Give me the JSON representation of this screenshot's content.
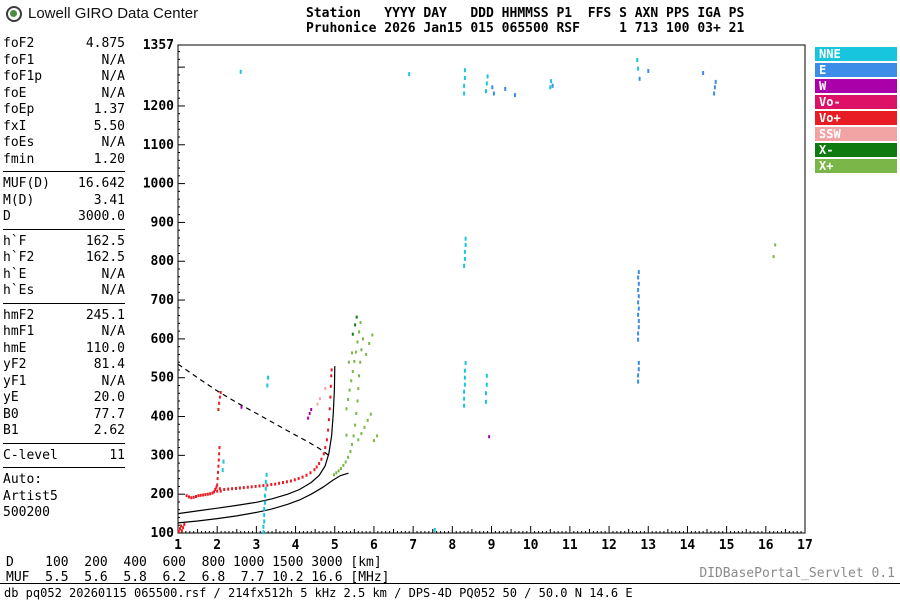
{
  "branding": {
    "title": "Lowell GIRO Data Center"
  },
  "station_header": {
    "line1": "Station   YYYY DAY   DDD HHMMSS P1  FFS S AXN PPS IGA PS",
    "line2": "Pruhonice 2026 Jan15 015 065500 RSF     1 713 100 03+ 21"
  },
  "parameters": {
    "sections": [
      {
        "divider": true,
        "rows": [
          {
            "label": "foF2",
            "value": "4.875"
          },
          {
            "label": "foF1",
            "value": "N/A"
          },
          {
            "label": "foF1p",
            "value": "N/A"
          },
          {
            "label": "foE",
            "value": "N/A"
          },
          {
            "label": "foEp",
            "value": "1.37"
          },
          {
            "label": "fxI",
            "value": "5.50"
          },
          {
            "label": "foEs",
            "value": "N/A"
          },
          {
            "label": "fmin",
            "value": "1.20"
          }
        ]
      },
      {
        "divider": true,
        "rows": [
          {
            "label": "MUF(D)",
            "value": "16.642"
          },
          {
            "label": "M(D)",
            "value": "3.41"
          },
          {
            "label": "D",
            "value": "3000.0"
          }
        ]
      },
      {
        "divider": true,
        "rows": [
          {
            "label": "h`F",
            "value": "162.5"
          },
          {
            "label": "h`F2",
            "value": "162.5"
          },
          {
            "label": "h`E",
            "value": "N/A"
          },
          {
            "label": "h`Es",
            "value": "N/A"
          }
        ]
      },
      {
        "divider": true,
        "rows": [
          {
            "label": "hmF2",
            "value": "245.1"
          },
          {
            "label": "hmF1",
            "value": "N/A"
          },
          {
            "label": "hmE",
            "value": "110.0"
          },
          {
            "label": "yF2",
            "value": "81.4"
          },
          {
            "label": "yF1",
            "value": "N/A"
          },
          {
            "label": "yE",
            "value": "20.0"
          },
          {
            "label": "B0",
            "value": "77.7"
          },
          {
            "label": "B1",
            "value": "2.62"
          }
        ]
      },
      {
        "divider": true,
        "rows": [
          {
            "label": "C-level",
            "value": "11"
          }
        ]
      },
      {
        "divider": false,
        "rows": [
          {
            "label": "Auto:",
            "value": ""
          },
          {
            "label": "Artist5",
            "value": ""
          },
          {
            "label": "500200",
            "value": ""
          }
        ]
      }
    ]
  },
  "legend": {
    "items": [
      {
        "label": "NNE",
        "color": "#17c6de"
      },
      {
        "label": "E",
        "color": "#3b8de8"
      },
      {
        "label": "W",
        "color": "#aa00aa"
      },
      {
        "label": "Vo-",
        "color": "#dd1166"
      },
      {
        "label": "Vo+",
        "color": "#e81c24"
      },
      {
        "label": "SSW",
        "color": "#f2a3a3"
      },
      {
        "label": "X-",
        "color": "#0f7a0f"
      },
      {
        "label": "X+",
        "color": "#7ab648"
      }
    ]
  },
  "chart_data": {
    "type": "scatter",
    "title": "",
    "xlabel": "",
    "ylabel": "",
    "x_unit": "MHz",
    "y_unit": "km",
    "x_range": [
      1,
      17
    ],
    "y_range": [
      100,
      1357
    ],
    "x_ticks": [
      1,
      2,
      3,
      4,
      5,
      6,
      7,
      8,
      9,
      10,
      11,
      12,
      13,
      14,
      15,
      16,
      17
    ],
    "y_ticks": [
      100,
      200,
      300,
      400,
      500,
      600,
      700,
      800,
      900,
      1000,
      1100,
      1200
    ],
    "y_top_label": 1357,
    "lines": [
      {
        "name": "true-height-profile",
        "color": "#000000",
        "dashed": false,
        "points": [
          [
            1,
            150
          ],
          [
            1.5,
            157
          ],
          [
            2,
            164
          ],
          [
            2.5,
            171
          ],
          [
            3,
            179
          ],
          [
            3.4,
            188
          ],
          [
            3.8,
            200
          ],
          [
            4.1,
            212
          ],
          [
            4.4,
            230
          ],
          [
            4.6,
            248
          ],
          [
            4.75,
            272
          ],
          [
            4.85,
            305
          ],
          [
            4.92,
            350
          ],
          [
            4.96,
            405
          ],
          [
            4.99,
            470
          ],
          [
            5.0,
            530
          ]
        ]
      },
      {
        "name": "baseline-fit",
        "color": "#000000",
        "dashed": false,
        "points": [
          [
            1,
            126
          ],
          [
            1.5,
            131
          ],
          [
            2,
            137
          ],
          [
            2.5,
            144
          ],
          [
            3,
            153
          ],
          [
            3.4,
            162
          ],
          [
            3.8,
            174
          ],
          [
            4.1,
            185
          ],
          [
            4.4,
            200
          ],
          [
            4.7,
            218
          ],
          [
            4.95,
            236
          ],
          [
            5.15,
            248
          ],
          [
            5.35,
            254
          ]
        ]
      },
      {
        "name": "muf-transmission-curve",
        "color": "#000000",
        "dashed": true,
        "points": [
          [
            1,
            535
          ],
          [
            1.5,
            500
          ],
          [
            2,
            466
          ],
          [
            2.5,
            436
          ],
          [
            3,
            408
          ],
          [
            3.5,
            380
          ],
          [
            4,
            352
          ],
          [
            4.3,
            336
          ],
          [
            4.6,
            318
          ],
          [
            4.85,
            300
          ]
        ]
      }
    ],
    "series": [
      {
        "name": "Vo+",
        "color": "#e81c24",
        "dot": [
          2,
          3
        ],
        "points": [
          [
            1.02,
            104
          ],
          [
            1.05,
            111
          ],
          [
            1.08,
            118
          ],
          [
            1.1,
            106
          ],
          [
            1.13,
            114
          ],
          [
            1.16,
            122
          ],
          [
            1.22,
            196
          ],
          [
            1.28,
            193
          ],
          [
            1.34,
            191
          ],
          [
            1.4,
            192
          ],
          [
            1.46,
            194
          ],
          [
            1.52,
            196
          ],
          [
            1.58,
            197
          ],
          [
            1.64,
            198
          ],
          [
            1.7,
            199
          ],
          [
            1.76,
            200
          ],
          [
            1.82,
            201
          ],
          [
            1.88,
            203
          ],
          [
            1.92,
            206
          ],
          [
            1.95,
            212
          ],
          [
            1.98,
            218
          ],
          [
            2.0,
            208
          ],
          [
            2.0,
            224
          ],
          [
            2.01,
            240
          ],
          [
            2.02,
            256
          ],
          [
            2.03,
            272
          ],
          [
            2.04,
            288
          ],
          [
            2.05,
            304
          ],
          [
            2.06,
            320
          ],
          [
            2.07,
            214
          ],
          [
            2.09,
            208
          ],
          [
            2.03,
            418
          ],
          [
            2.05,
            434
          ],
          [
            2.07,
            450
          ],
          [
            2.09,
            462
          ],
          [
            2.18,
            212
          ],
          [
            2.28,
            213
          ],
          [
            2.38,
            214
          ],
          [
            2.48,
            215
          ],
          [
            2.58,
            216
          ],
          [
            2.68,
            217
          ],
          [
            2.78,
            218
          ],
          [
            2.88,
            219
          ],
          [
            2.98,
            220
          ],
          [
            3.08,
            221
          ],
          [
            3.18,
            222
          ],
          [
            3.28,
            223
          ],
          [
            3.38,
            225
          ],
          [
            3.48,
            226
          ],
          [
            3.58,
            228
          ],
          [
            3.68,
            230
          ],
          [
            3.78,
            232
          ],
          [
            3.88,
            234
          ],
          [
            3.98,
            237
          ],
          [
            4.08,
            240
          ],
          [
            4.18,
            244
          ],
          [
            4.28,
            249
          ],
          [
            4.38,
            255
          ],
          [
            4.48,
            263
          ],
          [
            4.54,
            270
          ],
          [
            4.6,
            279
          ],
          [
            4.66,
            290
          ],
          [
            4.72,
            304
          ],
          [
            4.76,
            320
          ],
          [
            4.8,
            340
          ],
          [
            4.83,
            365
          ],
          [
            4.85,
            392
          ],
          [
            4.87,
            420
          ],
          [
            4.89,
            450
          ],
          [
            4.9,
            478
          ],
          [
            4.91,
            505
          ],
          [
            4.92,
            520
          ]
        ]
      },
      {
        "name": "X+",
        "color": "#7ab648",
        "dot": [
          2,
          3
        ],
        "points": [
          [
            4.98,
            250
          ],
          [
            5.04,
            255
          ],
          [
            5.1,
            260
          ],
          [
            5.16,
            266
          ],
          [
            5.22,
            274
          ],
          [
            5.28,
            283
          ],
          [
            5.34,
            295
          ],
          [
            5.4,
            310
          ],
          [
            5.44,
            328
          ],
          [
            5.48,
            350
          ],
          [
            5.52,
            378
          ],
          [
            5.55,
            408
          ],
          [
            5.58,
            440
          ],
          [
            5.6,
            472
          ],
          [
            5.62,
            505
          ],
          [
            5.65,
            540
          ],
          [
            5.68,
            572
          ],
          [
            5.72,
            600
          ],
          [
            5.3,
            420
          ],
          [
            5.34,
            444
          ],
          [
            5.38,
            468
          ],
          [
            5.42,
            492
          ],
          [
            5.46,
            516
          ],
          [
            5.5,
            542
          ],
          [
            5.54,
            566
          ],
          [
            5.58,
            592
          ],
          [
            5.62,
            618
          ],
          [
            5.66,
            642
          ],
          [
            5.36,
            540
          ],
          [
            5.44,
            564
          ],
          [
            5.3,
            352
          ],
          [
            5.6,
            340
          ],
          [
            5.68,
            356
          ],
          [
            5.76,
            372
          ],
          [
            5.84,
            390
          ],
          [
            5.92,
            406
          ],
          [
            6.0,
            338
          ],
          [
            6.08,
            350
          ],
          [
            5.8,
            560
          ],
          [
            5.88,
            588
          ],
          [
            5.96,
            610
          ],
          [
            16.2,
            812
          ],
          [
            16.24,
            842
          ]
        ]
      },
      {
        "name": "NNE",
        "color": "#17c6de",
        "dot": [
          2,
          4
        ],
        "points": [
          [
            3.18,
            102
          ],
          [
            3.18,
            116
          ],
          [
            3.2,
            130
          ],
          [
            3.2,
            146
          ],
          [
            3.2,
            162
          ],
          [
            3.22,
            178
          ],
          [
            3.22,
            196
          ],
          [
            3.24,
            214
          ],
          [
            3.24,
            232
          ],
          [
            3.26,
            250
          ],
          [
            3.28,
            480
          ],
          [
            3.3,
            500
          ],
          [
            2.14,
            262
          ],
          [
            2.16,
            284
          ],
          [
            8.3,
            428
          ],
          [
            8.3,
            446
          ],
          [
            8.3,
            464
          ],
          [
            8.32,
            482
          ],
          [
            8.32,
            500
          ],
          [
            8.32,
            518
          ],
          [
            8.34,
            538
          ],
          [
            8.3,
            788
          ],
          [
            8.32,
            806
          ],
          [
            8.32,
            824
          ],
          [
            8.34,
            842
          ],
          [
            8.34,
            858
          ],
          [
            8.3,
            1232
          ],
          [
            8.3,
            1252
          ],
          [
            8.32,
            1272
          ],
          [
            8.32,
            1292
          ],
          [
            8.86,
            438
          ],
          [
            8.86,
            460
          ],
          [
            8.88,
            482
          ],
          [
            8.88,
            505
          ],
          [
            8.86,
            1238
          ],
          [
            8.88,
            1258
          ],
          [
            8.9,
            1276
          ],
          [
            10.5,
            1248
          ],
          [
            10.52,
            1264
          ],
          [
            7.55,
            108
          ],
          [
            2.6,
            1288
          ],
          [
            6.9,
            1282
          ],
          [
            12.72,
            1318
          ],
          [
            12.74,
            1296
          ]
        ]
      },
      {
        "name": "E",
        "color": "#3b8de8",
        "dot": [
          2,
          4
        ],
        "points": [
          [
            9.02,
            1248
          ],
          [
            9.06,
            1232
          ],
          [
            9.35,
            1244
          ],
          [
            9.6,
            1228
          ],
          [
            10.56,
            1252
          ],
          [
            13.0,
            1290
          ],
          [
            14.4,
            1285
          ],
          [
            14.68,
            1232
          ],
          [
            14.7,
            1248
          ],
          [
            14.72,
            1262
          ],
          [
            12.78,
            1270
          ],
          [
            12.74,
            490
          ],
          [
            12.74,
            506
          ],
          [
            12.76,
            522
          ],
          [
            12.76,
            538
          ],
          [
            12.74,
            598
          ],
          [
            12.74,
            614
          ],
          [
            12.76,
            630
          ],
          [
            12.76,
            646
          ],
          [
            12.74,
            662
          ],
          [
            12.76,
            678
          ],
          [
            12.74,
            694
          ],
          [
            12.76,
            710
          ],
          [
            12.74,
            726
          ],
          [
            12.76,
            742
          ],
          [
            12.74,
            758
          ],
          [
            12.76,
            772
          ]
        ]
      },
      {
        "name": "W",
        "color": "#aa00aa",
        "dot": [
          2,
          3
        ],
        "points": [
          [
            4.32,
            396
          ],
          [
            4.36,
            408
          ],
          [
            4.4,
            418
          ],
          [
            8.94,
            348
          ],
          [
            2.62,
            424
          ]
        ]
      },
      {
        "name": "SSW",
        "color": "#f2a3a3",
        "dot": [
          2,
          3
        ],
        "points": [
          [
            4.56,
            432
          ],
          [
            4.62,
            446
          ],
          [
            4.76,
            472
          ]
        ]
      },
      {
        "name": "X-",
        "color": "#0f7a0f",
        "dot": [
          2,
          3
        ],
        "points": [
          [
            5.46,
            612
          ],
          [
            5.52,
            636
          ],
          [
            5.56,
            656
          ]
        ]
      }
    ]
  },
  "muf_table": {
    "line1": "D    100  200  400  600  800 1000 1500 3000 [km]",
    "line2": "MUF  5.5  5.6  5.8  6.2  6.8  7.7 10.2 16.6 [MHz]",
    "distances_km": [
      100,
      200,
      400,
      600,
      800,
      1000,
      1500,
      3000
    ],
    "muf_mhz": [
      5.5,
      5.6,
      5.8,
      6.2,
      6.8,
      7.7,
      10.2,
      16.6
    ]
  },
  "footer": {
    "info": "db pq052 20260115 065500.rsf / 214fx512h 5 kHz 2.5 km / DPS-4D PQ052 50 / 50.0 N 14.6 E",
    "servlet": "DIDBasePortal_Servlet 0.1"
  }
}
